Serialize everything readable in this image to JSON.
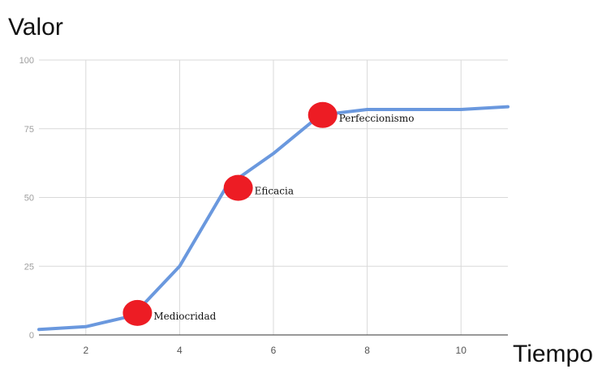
{
  "chart_data": {
    "type": "line",
    "ylabel": "Valor",
    "xlabel": "Tiempo",
    "xlim": [
      1,
      11
    ],
    "ylim": [
      0,
      100
    ],
    "xticks": [
      2,
      4,
      6,
      8,
      10
    ],
    "yticks": [
      0,
      25,
      50,
      75,
      100
    ],
    "grid": true,
    "series": [
      {
        "x": [
          1,
          2,
          3,
          4,
          5,
          6,
          7,
          8,
          9,
          10,
          11
        ],
        "values": [
          2,
          3,
          7,
          25,
          54,
          66,
          80,
          82,
          82,
          82,
          83
        ]
      }
    ],
    "annotations": [
      {
        "label": "Mediocridad",
        "x": 3.1,
        "y": 8
      },
      {
        "label": "Eficacia",
        "x": 5.25,
        "y": 53.5
      },
      {
        "label": "Perfeccionismo",
        "x": 7.05,
        "y": 80
      }
    ],
    "colors": {
      "line": "#6a98de",
      "marker": "#ed1c24",
      "grid": "#d9d9d9",
      "axis": "#333333"
    }
  }
}
